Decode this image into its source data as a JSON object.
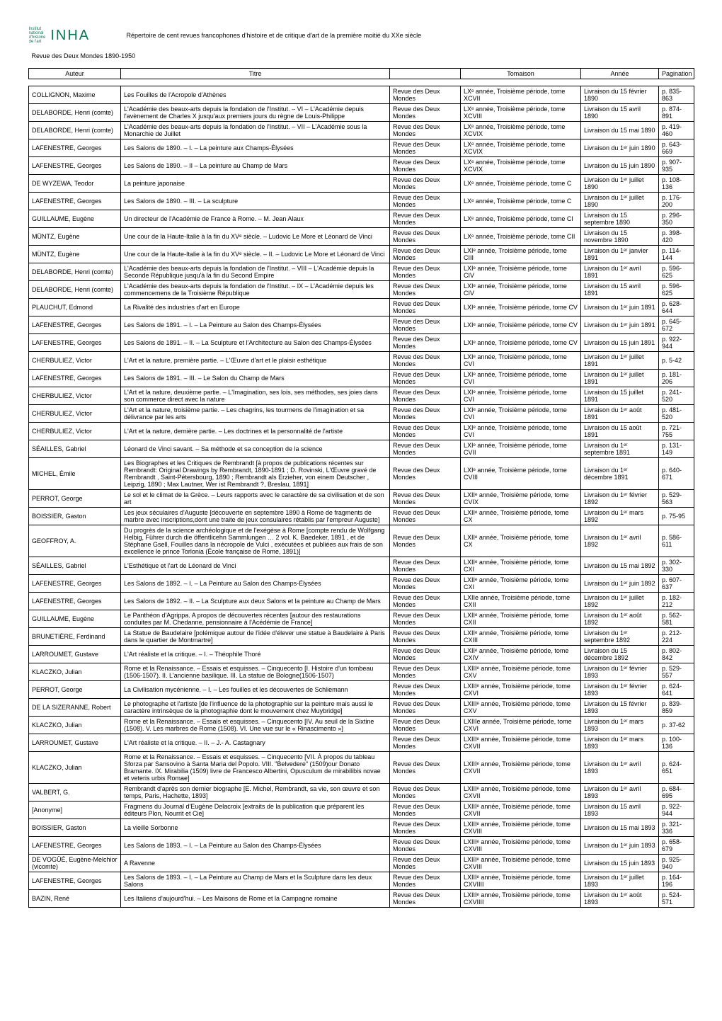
{
  "logo": {
    "line1": "Institut",
    "line2": "national",
    "line3": "d'histoire",
    "line4": "de l'art",
    "inha": "INHA"
  },
  "header": {
    "repertoire": "Répertoire de cent revues francophones d'histoire et de critique d'art de la première moitié du XXe siècle",
    "revue_title": "Revue des Deux Mondes 1890-1950"
  },
  "columns": {
    "auteur": "Auteur",
    "titre": "Titre",
    "tomaison": "Tomaison",
    "annee": "Année",
    "pagination": "Pagination"
  },
  "rows": [
    {
      "auteur": "COLLIGNON, Maxime",
      "titre": "Les Fouilles de l'Acropole d'Athènes",
      "revue": "Revue des Deux Mondes",
      "tomaison": "LXᵉ année, Troisième période, tome XCVII",
      "annee": "Livraison du 15 février 1890",
      "pag": "p. 835-863"
    },
    {
      "auteur": "DELABORDE, Henri (comte)",
      "titre": "L'Académie des beaux-arts depuis la fondation de l'Institut. – VI – L'Académie depuis l'avènement de Charles X jusqu'aux premiers jours du règne de Louis-Philippe",
      "revue": "Revue des Deux Mondes",
      "tomaison": "LXᵉ année, Troisième période, tome XCVIII",
      "annee": "Livraison du 15 avril 1890",
      "pag": "p. 874-891"
    },
    {
      "auteur": "DELABORDE, Henri (comte)",
      "titre": "L'Académie des beaux-arts depuis la fondation de l'Institut. – VII – L'Académie sous la Monarchie de Juillet",
      "revue": "Revue des Deux Mondes",
      "tomaison": "LXᵉ année, Troisième période, tome XCVIX",
      "annee": "Livraison du 15 mai 1890",
      "pag": "p. 419-460"
    },
    {
      "auteur": "LAFENESTRE, Georges",
      "titre": "Les Salons de 1890. – I. – La peinture aux Champs-Élysées",
      "revue": "Revue des Deux Mondes",
      "tomaison": "LXᵉ année, Troisième période, tome XCVIX",
      "annee": "Livraison du 1ᵉʳ juin 1890",
      "pag": "p. 643-669"
    },
    {
      "auteur": "LAFENESTRE, Georges",
      "titre": "Les Salons de 1890. – II – La peinture au Champ de Mars",
      "revue": "Revue des Deux Mondes",
      "tomaison": "LXᵉ année, Troisième période, tome XCVIX",
      "annee": "Livraison du 15 juin 1890",
      "pag": "p. 907-935"
    },
    {
      "auteur": "DE WYZEWA, Teodor",
      "titre": "La peinture japonaise",
      "revue": "Revue des Deux Mondes",
      "tomaison": "LXᵉ année, Troisième période, tome C",
      "annee": "Livraison du 1ᵉʳ juillet 1890",
      "pag": "p. 108-136"
    },
    {
      "auteur": "LAFENESTRE, Georges",
      "titre": "Les Salons de 1890. – III. – La sculpture",
      "revue": "Revue des Deux Mondes",
      "tomaison": "LXᵉ année, Troisième période, tome C",
      "annee": "Livraison du 1ᵉʳ juillet 1890",
      "pag": "p. 176-200"
    },
    {
      "auteur": "GUILLAUME, Eugène",
      "titre": "Un directeur de l'Académie de France à Rome. – M. Jean Alaux",
      "revue": "Revue des Deux Mondes",
      "tomaison": "LXᵉ année, Troisième période, tome CI",
      "annee": "Livraison du 15 septembre 1890",
      "pag": "p. 296-350"
    },
    {
      "auteur": "MÜNTZ, Eugène",
      "titre": "Une cour de la Haute-Italie à la fin du XVᵉ siècle. – Ludovic Le More et Léonard de Vinci",
      "revue": "Revue des Deux Mondes",
      "tomaison": "LXᵉ année, Troisième période, tome CII",
      "annee": "Livraison du 15 novembre 1890",
      "pag": "p. 398-420"
    },
    {
      "auteur": "MÜNTZ, Eugène",
      "titre": "Une cour de la Haute-Italie à la fin du XVᵉ siècle. – II. – Ludovic Le More et Léonard de Vinci",
      "revue": "Revue des Deux Mondes",
      "tomaison": "LXIᵉ année, Troisième période, tome CIII",
      "annee": "Livraison du 1ᵉʳ janvier 1891",
      "pag": "p. 114-144"
    },
    {
      "auteur": "DELABORDE, Henri (comte)",
      "titre": "L'Académie des beaux-arts depuis la fondation de l'Institut. – VIII – L'Académie depuis la Seconde République jusqu'à la fin du Second Empire",
      "revue": "Revue des Deux Mondes",
      "tomaison": "LXIᵉ année, Troisième période, tome CIV",
      "annee": "Livraison du 1ᵉʳ avril 1891",
      "pag": "p. 596-625"
    },
    {
      "auteur": "DELABORDE, Henri (comte)",
      "titre": "L'Académie des beaux-arts depuis la fondation de l'Institut. – IX – L'Académie depuis les commencemens de la Troisième République",
      "revue": "Revue des Deux Mondes",
      "tomaison": "LXIᵉ année, Troisième période, tome CIV",
      "annee": "Livraison du  15 avril 1891",
      "pag": "p.  596-625"
    },
    {
      "auteur": "PLAUCHUT, Edmond",
      "titre": "La Rivalité des industries d'art en Europe",
      "revue": "Revue des Deux Mondes",
      "tomaison": "LXIᵉ année, Troisième période, tome CV",
      "annee": "Livraison du 1ᵉʳ juin 1891",
      "pag": "p. 628-644"
    },
    {
      "auteur": "LAFENESTRE, Georges",
      "titre": "Les Salons de 1891. – I. – La Peinture au Salon des Champs-Élysées",
      "revue": "Revue des Deux Mondes",
      "tomaison": "LXIᵉ année, Troisième période, tome CV",
      "annee": "Livraison du 1ᵉʳ juin 1891",
      "pag": "p. 645-672"
    },
    {
      "auteur": "LAFENESTRE, Georges",
      "titre": "Les Salons de 1891. – II. – La Sculpture et l'Architecture au Salon des Champs-Élysées",
      "revue": "Revue des Deux Mondes",
      "tomaison": "LXIᵉ année, Troisième période, tome CV",
      "annee": "Livraison du 15 juin 1891",
      "pag": "p. 922-944"
    },
    {
      "auteur": "CHERBULIEZ, Victor",
      "titre": "L'Art et la nature, première partie. – L'Œuvre d'art et le plaisir esthétique",
      "revue": "Revue des Deux Mondes",
      "tomaison": "LXIᵉ année, Troisième période, tome CVI",
      "annee": "Livraison du 1ᵉʳ juillet 1891",
      "pag": "p. 5-42"
    },
    {
      "auteur": "LAFENESTRE, Georges",
      "titre": "Les Salons de 1891. – III. – Le Salon du Champ de Mars",
      "revue": "Revue des Deux Mondes",
      "tomaison": "LXIᵉ année, Troisième période, tome CVI",
      "annee": "Livraison du 1ᵉʳ juillet 1891",
      "pag": "p. 181-206"
    },
    {
      "auteur": "CHERBULIEZ, Victor",
      "titre": "L'Art et la nature, deuxième partie. – L'Imagination, ses lois, ses méthodes, ses joies dans son commerce direct avec la nature",
      "revue": "Revue des Deux Mondes",
      "tomaison": "LXIᵉ année, Troisième période, tome CVI",
      "annee": "Livraison du 15 juillet 1891",
      "pag": "p. 241-520"
    },
    {
      "auteur": "CHERBULIEZ, Victor",
      "titre": "L'Art et la nature, troisième partie. – Les chagrins, les tourmens de l'imagination et sa délivrance par les arts",
      "revue": "Revue des Deux Mondes",
      "tomaison": "LXIᵉ année, Troisième période, tome CVI",
      "annee": "Livraison du 1ᵉʳ août 1891",
      "pag": "p. 481-520"
    },
    {
      "auteur": "CHERBULIEZ, Victor",
      "titre": "L'Art et la nature, dernière partie. – Les doctrines et la personnalité de l'artiste",
      "revue": "Revue des Deux Mondes",
      "tomaison": "LXIᵉ année, Troisième période, tome CVI",
      "annee": "Livraison du 15 août 1891",
      "pag": "p. 721-755"
    },
    {
      "auteur": "SÉAILLES, Gabriel",
      "titre": "Léonard de Vinci savant. – Sa méthode et sa conception de la science",
      "revue": "Revue des Deux Mondes",
      "tomaison": "LXIᵉ année, Troisième période, tome CVII",
      "annee": "Livraison du 1ᵉʳ septembre 1891",
      "pag": "p. 131-149"
    },
    {
      "auteur": "MICHEL, Émile",
      "titre": "Les Biographes et les Critiques de Rembrandt [à propos de publications récentes sur Rembrandt: Original Drawings by Rembrandt, 1890-1891 ; D. Rovinski, L'Œuvre gravé de Rembrandt , Saint-Pétersbourg, 1890 ; Rembrandt als Erzieher, von einem Deutscher , Leipzig, 1890 ; Max Lautner, Wer ist Rembrandt ?, Breslau, 1891]",
      "revue": "Revue des Deux Mondes",
      "tomaison": "LXIᵉ année, Troisième période, tome CVIII",
      "annee": "Livraison du 1ᵉʳ décembre 1891",
      "pag": "p. 640-671"
    },
    {
      "auteur": "PERROT, George",
      "titre": "Le sol et le climat de la Grèce. – Leurs rapports avec le caractère de sa civilisation et de son art",
      "revue": "Revue des Deux Mondes",
      "tomaison": "LXIIᵉ année, Troisième période, tome CVIX",
      "annee": "Livraison du 1ᵉʳ février 1892",
      "pag": "p. 529-563"
    },
    {
      "auteur": "BOISSIER, Gaston",
      "titre": "Les jeux séculaires d'Auguste [découverte en septembre 1890 à Rome de fragments de marbre avec inscriptions,dont une traite de jeux consulaires rétablis par l'empreur Auguste]",
      "revue": "Revue des Deux Mondes",
      "tomaison": "LXIIᵉ année, Troisième période, tome CX",
      "annee": "Livraison du 1ᵉʳ mars 1892",
      "pag": "p.  75-95"
    },
    {
      "auteur": "GEOFFROY, A.",
      "titre": "Du progrès de la science archéologique et de l'exégèse à Rome [compte rendu de Wolfgang Helbig, Führer durch die öffentlicehn Sammlungen … 2 vol. K. Baedeker, 1891 , et de Stéphane Gsell, Fouilles dans la nécropole de Vulci , exécutées et publiées aux frais de son excellence le prince Torlonia (École française de Rome, 1891)]",
      "revue": "Revue des Deux Mondes",
      "tomaison": "LXIIᵉ année, Troisième période, tome CX",
      "annee": "Livraison du 1ᵉʳ avril 1892",
      "pag": "p. 586-611"
    },
    {
      "auteur": "SÉAILLES, Gabriel",
      "titre": "L'Esthétique et l'art de Léonard de Vinci",
      "revue": "Revue des Deux Mondes",
      "tomaison": "LXIIᵉ année, Troisième période, tome CXI",
      "annee": "Livraison du 15 mai 1892",
      "pag": "p. 302-330"
    },
    {
      "auteur": "LAFENESTRE, Georges",
      "titre": "Les Salons de 1892. – I. – La Peinture au Salon des Champs-Élysées",
      "revue": "Revue des Deux Mondes",
      "tomaison": "LXIIᵉ année, Troisième période, tome CXI",
      "annee": "Livraison du 1ᵉʳ juin 1892",
      "pag": "p. 607-637"
    },
    {
      "auteur": "LAFENESTRE, Georges",
      "titre": "Les Salons de 1892. – II. – La Sculpture aux deux Salons et la peinture au Champ de Mars",
      "revue": "Revue des Deux Mondes",
      "tomaison": "LXIIe année, Troisième période, tome CXII",
      "annee": "Livraison du 1ᵉʳ juillet 1892",
      "pag": "p. 182-212"
    },
    {
      "auteur": "GUILLAUME, Eugène",
      "titre": "Le Panthéon d'Agrippa. A propos de découvertes récentes [autour des restaurations conduites par M. Chedanne, pensionnaire à l'Acédémie de France]",
      "revue": "Revue des Deux Mondes",
      "tomaison": "LXIIᵉ année, Troisième période, tome CXII",
      "annee": "Livraison du 1ᵉʳ août 1892",
      "pag": "p. 562-581"
    },
    {
      "auteur": "BRUNETIÈRE, Ferdinand",
      "titre": "La Statue de Baudelaire [polémique autour de l'idée d'élever une statue à Baudelaire à Paris dans le quartier de Montmartre]",
      "revue": "Revue des Deux Mondes",
      "tomaison": "LXIIᵉ année, Troisième période, tome CXIII",
      "annee": "Livraison du 1ᵉʳ septembre 1892",
      "pag": "p. 212-224"
    },
    {
      "auteur": "LARROUMET, Gustave",
      "titre": "L'Art réaliste et la critique. – I. – Théophile Thoré",
      "revue": "Revue des Deux Mondes",
      "tomaison": "LXIIᵉ année, Troisième période, tome CXIV",
      "annee": "Livraison du 15 décembre 1892",
      "pag": "p. 802-842"
    },
    {
      "auteur": "KLACZKO, Julian",
      "titre": "Rome et la Renaissance. – Essais et esquisses. – Cinquecento [I. Histoire d'un tombeau (1506-1507). II. L'ancienne basilique. III. La statue de Bologne(1506-1507)",
      "revue": "Revue des Deux Mondes",
      "tomaison": "LXIIIᵉ année, Troisième période, tome CXV",
      "annee": "Livraison du 1ᵉʳ février 1893",
      "pag": "p. 529-557"
    },
    {
      "auteur": "PERROT, George",
      "titre": "La Civilisation mycénienne. – I. – Les fouilles et les découvertes de Schliemann",
      "revue": "Revue des Deux Mondes",
      "tomaison": "LXIIIᵉ année, Troisième période, tome CXVI",
      "annee": "Livraison du 1ᵉʳ février 1893",
      "pag": "p. 624-641"
    },
    {
      "auteur": "DE LA SIZERANNE, Robert",
      "titre": "Le photographe et l'artiste [de l'influence de la photographie sur la peinture mais aussi le caractère intrinsèque de la photographie dont le mouvement chez Muybridge]",
      "revue": "Revue des Deux Mondes",
      "tomaison": "LXIIIᵉ année, Troisième période, tome CXV",
      "annee": "Livraison du 15 février 1893",
      "pag": "p. 839-859"
    },
    {
      "auteur": "KLACZKO, Julian",
      "titre": "Rome et la Renaissance. – Essais et esquisses. – Cinquecento [IV. Au seuil de la Sixtine (1508). V. Les marbres de Rome (1508). VI. Une vue sur le « Rinascimento »]",
      "revue": "Revue des Deux Mondes",
      "tomaison": "LXIIIe année, Troisième période, tome CXVI",
      "annee": "Livraison du 1ᵉʳ mars 1893",
      "pag": "p. 37-62"
    },
    {
      "auteur": "LARROUMET, Gustave",
      "titre": "L'Art réaliste et la critique. – II. – J.- A. Castagnary",
      "revue": "Revue des Deux Mondes",
      "tomaison": "LXIIIᵉ année, Troisième période, tome CXVII",
      "annee": "Livraison du 1ᵉʳ mars 1893",
      "pag": "p. 100-136"
    },
    {
      "auteur": "KLACZKO, Julian",
      "titre": "Rome et la Renaissance. – Essais et esquisses. – Cinquecento [VII. À propos du tableau Sforza par Sansovino à Santa Maria del Popolo. VIII. \"Belvedere\" (1509)our Donato Bramante. IX. Mirabilia (1509) livre de Francesco Albertini, Opusculum de mirabilibis novae et veteris urbis Romae]",
      "revue": "Revue des Deux Mondes",
      "tomaison": "LXIIIᵉ année, Troisième période, tome CXVII",
      "annee": "Livraison du 1ᵉʳ avril 1893",
      "pag": "p. 624-651"
    },
    {
      "auteur": "VALBERT, G.",
      "titre": "Rembrandt d'après son dernier biographe [E. Michel, Rembrandt, sa vie, son œuvre et son temps, Paris, Hachette, 1893]",
      "revue": "Revue des Deux Mondes",
      "tomaison": "LXIIIᵉ année, Troisième période, tome CXVII",
      "annee": "Livraison du 1ᵉʳ avril 1893",
      "pag": "p. 684-695"
    },
    {
      "auteur": "[Anonyme]",
      "titre": "Fragmens du Journal d'Eugène Delacroix [extraits de la publication que préparent les éditeurs Plon, Nourrit et Cie]",
      "revue": "Revue des Deux Mondes",
      "tomaison": "LXIIIᵉ année, Troisième période, tome CXVII",
      "annee": "Livraison du 15 avril 1893",
      "pag": "p. 922-944"
    },
    {
      "auteur": "BOISSIER, Gaston",
      "titre": "La vieille Sorbonne",
      "revue": "Revue des Deux Mondes",
      "tomaison": "LXIIIᵉ année, Troisième période, tome CXVIII",
      "annee": "Livraison du 15 mai 1893",
      "pag": "p. 321-336"
    },
    {
      "auteur": "LAFENESTRE, Georges",
      "titre": "Les Salons de 1893. – I. – La Peinture au Salon des Champs-Élysées",
      "revue": "Revue des Deux Mondes",
      "tomaison": "LXIIIᵉ année, Troisième période, tome CXVIII",
      "annee": "Livraison du 1ᵉʳ juin 1893",
      "pag": "p. 658-679"
    },
    {
      "auteur": "DE VOGÜÉ, Eugène-Melchior (vicomte)",
      "titre": "A Ravenne",
      "revue": "Revue des Deux Mondes",
      "tomaison": "LXIIIᵉ année, Troisième période, tome CXVIII",
      "annee": "Livraison du 15 juin 1893",
      "pag": "p. 925-940"
    },
    {
      "auteur": "LAFENESTRE, Georges",
      "titre": "Les Salons de 1893. – I. – La Peinture au Champ de Mars et la Sculpture dans les deux Salons",
      "revue": "Revue des Deux Mondes",
      "tomaison": "LXIIIᵉ année, Troisième période, tome CXVIIII",
      "annee": "Livraison du 1ᵉʳ juillet 1893",
      "pag": "p. 164-196"
    },
    {
      "auteur": "BAZIN, René",
      "titre": "Les Italiens d'aujourd'hui. – Les Maisons de Rome et la Campagne romaine",
      "revue": "Revue des Deux Mondes",
      "tomaison": "LXIIIᵉ année, Troisième période, tome CXVIIII",
      "annee": "Livraison du 1ᵉʳ août 1893",
      "pag": "p. 524-571"
    }
  ]
}
